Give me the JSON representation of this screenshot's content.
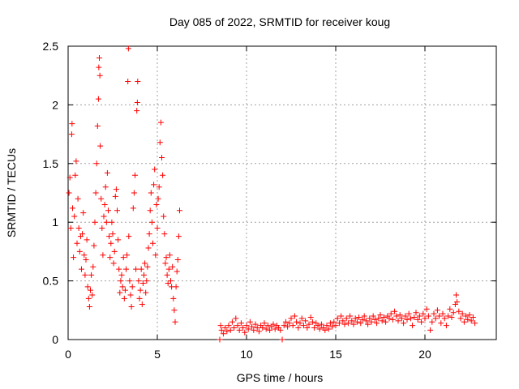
{
  "chart_data": {
    "type": "scatter",
    "title": "Day 085 of 2022, SRMTID for receiver koug",
    "xlabel": "GPS time / hours",
    "ylabel": "SRMTID / TECUs",
    "xlim": [
      0,
      24
    ],
    "ylim": [
      0,
      2.5
    ],
    "xticks": [
      0,
      5,
      10,
      15,
      20
    ],
    "yticks": [
      0,
      0.5,
      1,
      1.5,
      2,
      2.5
    ],
    "xtick_labels": [
      "0",
      "5",
      "10",
      "15",
      "20"
    ],
    "ytick_labels": [
      "0",
      "0.5",
      "1",
      "1.5",
      "2",
      "2.5"
    ],
    "grid": true,
    "marker": "+",
    "color": "#ff0000",
    "series": [
      {
        "name": "SRMTID",
        "points": [
          [
            0.05,
            1.25
          ],
          [
            0.1,
            1.38
          ],
          [
            0.15,
            0.95
          ],
          [
            0.2,
            1.75
          ],
          [
            0.22,
            1.84
          ],
          [
            0.25,
            1.12
          ],
          [
            0.3,
            0.7
          ],
          [
            0.35,
            1.05
          ],
          [
            0.4,
            1.4
          ],
          [
            0.45,
            1.52
          ],
          [
            0.5,
            0.82
          ],
          [
            0.55,
            1.2
          ],
          [
            0.6,
            0.95
          ],
          [
            0.65,
            0.75
          ],
          [
            0.7,
            0.88
          ],
          [
            0.75,
            0.6
          ],
          [
            0.8,
            0.9
          ],
          [
            0.85,
            1.08
          ],
          [
            0.9,
            0.72
          ],
          [
            0.95,
            0.55
          ],
          [
            1.0,
            0.68
          ],
          [
            1.05,
            0.85
          ],
          [
            1.1,
            0.45
          ],
          [
            1.15,
            0.35
          ],
          [
            1.2,
            0.28
          ],
          [
            1.25,
            0.42
          ],
          [
            1.3,
            0.55
          ],
          [
            1.35,
            0.38
          ],
          [
            1.4,
            0.62
          ],
          [
            1.45,
            0.8
          ],
          [
            1.5,
            1.0
          ],
          [
            1.55,
            1.25
          ],
          [
            1.6,
            1.5
          ],
          [
            1.65,
            1.82
          ],
          [
            1.7,
            2.05
          ],
          [
            1.72,
            2.32
          ],
          [
            1.75,
            2.4
          ],
          [
            1.78,
            2.25
          ],
          [
            1.8,
            1.65
          ],
          [
            1.85,
            1.2
          ],
          [
            1.9,
            0.95
          ],
          [
            1.95,
            0.72
          ],
          [
            2.0,
            1.05
          ],
          [
            2.05,
            1.15
          ],
          [
            2.1,
            1.3
          ],
          [
            2.15,
            1.0
          ],
          [
            2.2,
            1.42
          ],
          [
            2.25,
            1.1
          ],
          [
            2.3,
            0.88
          ],
          [
            2.35,
            0.7
          ],
          [
            2.4,
            0.82
          ],
          [
            2.45,
            1.0
          ],
          [
            2.5,
            0.9
          ],
          [
            2.55,
            0.65
          ],
          [
            2.6,
            0.75
          ],
          [
            2.65,
            1.22
          ],
          [
            2.7,
            1.28
          ],
          [
            2.75,
            1.1
          ],
          [
            2.8,
            0.85
          ],
          [
            2.85,
            0.6
          ],
          [
            2.9,
            0.4
          ],
          [
            2.95,
            0.5
          ],
          [
            3.0,
            0.55
          ],
          [
            3.05,
            0.45
          ],
          [
            3.1,
            0.7
          ],
          [
            3.15,
            0.35
          ],
          [
            3.2,
            0.42
          ],
          [
            3.25,
            0.6
          ],
          [
            3.3,
            0.72
          ],
          [
            3.35,
            2.2
          ],
          [
            3.38,
            2.48
          ],
          [
            3.4,
            0.88
          ],
          [
            3.45,
            0.5
          ],
          [
            3.5,
            0.38
          ],
          [
            3.55,
            0.28
          ],
          [
            3.6,
            0.45
          ],
          [
            3.65,
            1.12
          ],
          [
            3.7,
            1.25
          ],
          [
            3.75,
            1.4
          ],
          [
            3.8,
            0.6
          ],
          [
            3.85,
            1.95
          ],
          [
            3.88,
            2.02
          ],
          [
            3.9,
            2.2
          ],
          [
            3.95,
            0.5
          ],
          [
            4.0,
            0.35
          ],
          [
            4.05,
            0.42
          ],
          [
            4.1,
            0.6
          ],
          [
            4.15,
            0.3
          ],
          [
            4.2,
            0.48
          ],
          [
            4.25,
            0.55
          ],
          [
            4.3,
            0.65
          ],
          [
            4.35,
            0.4
          ],
          [
            4.4,
            0.5
          ],
          [
            4.45,
            0.62
          ],
          [
            4.5,
            0.78
          ],
          [
            4.55,
            0.9
          ],
          [
            4.6,
            1.1
          ],
          [
            4.65,
            1.25
          ],
          [
            4.7,
            1.0
          ],
          [
            4.75,
            0.82
          ],
          [
            4.8,
            1.32
          ],
          [
            4.85,
            1.45
          ],
          [
            4.9,
            0.72
          ],
          [
            4.95,
            1.15
          ],
          [
            5.0,
            0.95
          ],
          [
            5.05,
            1.2
          ],
          [
            5.1,
            1.3
          ],
          [
            5.15,
            1.68
          ],
          [
            5.2,
            1.85
          ],
          [
            5.25,
            1.55
          ],
          [
            5.3,
            1.4
          ],
          [
            5.35,
            1.05
          ],
          [
            5.4,
            0.9
          ],
          [
            5.45,
            0.65
          ],
          [
            5.5,
            0.7
          ],
          [
            5.55,
            0.55
          ],
          [
            5.6,
            0.48
          ],
          [
            5.65,
            0.6
          ],
          [
            5.7,
            0.72
          ],
          [
            5.75,
            0.5
          ],
          [
            5.8,
            0.45
          ],
          [
            5.85,
            0.62
          ],
          [
            5.9,
            0.35
          ],
          [
            5.95,
            0.25
          ],
          [
            6.0,
            0.15
          ],
          [
            6.05,
            0.45
          ],
          [
            6.1,
            0.58
          ],
          [
            6.15,
            0.68
          ],
          [
            6.2,
            0.88
          ],
          [
            6.25,
            1.1
          ],
          [
            8.5,
            0.0
          ],
          [
            8.55,
            0.12
          ],
          [
            8.6,
            0.08
          ],
          [
            8.7,
            0.05
          ],
          [
            8.8,
            0.1
          ],
          [
            8.9,
            0.07
          ],
          [
            9.0,
            0.12
          ],
          [
            9.1,
            0.08
          ],
          [
            9.2,
            0.15
          ],
          [
            9.3,
            0.1
          ],
          [
            9.4,
            0.18
          ],
          [
            9.5,
            0.12
          ],
          [
            9.6,
            0.08
          ],
          [
            9.7,
            0.14
          ],
          [
            9.8,
            0.1
          ],
          [
            9.9,
            0.06
          ],
          [
            10.0,
            0.12
          ],
          [
            10.1,
            0.09
          ],
          [
            10.2,
            0.15
          ],
          [
            10.3,
            0.11
          ],
          [
            10.4,
            0.08
          ],
          [
            10.5,
            0.13
          ],
          [
            10.6,
            0.1
          ],
          [
            10.7,
            0.07
          ],
          [
            10.8,
            0.12
          ],
          [
            10.9,
            0.1
          ],
          [
            11.0,
            0.14
          ],
          [
            11.1,
            0.09
          ],
          [
            11.2,
            0.12
          ],
          [
            11.3,
            0.08
          ],
          [
            11.4,
            0.11
          ],
          [
            11.5,
            0.13
          ],
          [
            11.6,
            0.09
          ],
          [
            11.7,
            0.12
          ],
          [
            11.8,
            0.1
          ],
          [
            11.9,
            0.08
          ],
          [
            12.0,
            0.0
          ],
          [
            12.1,
            0.12
          ],
          [
            12.2,
            0.15
          ],
          [
            12.3,
            0.11
          ],
          [
            12.4,
            0.14
          ],
          [
            12.5,
            0.18
          ],
          [
            12.6,
            0.12
          ],
          [
            12.7,
            0.2
          ],
          [
            12.8,
            0.15
          ],
          [
            12.9,
            0.1
          ],
          [
            13.0,
            0.14
          ],
          [
            13.1,
            0.18
          ],
          [
            13.2,
            0.12
          ],
          [
            13.3,
            0.16
          ],
          [
            13.4,
            0.1
          ],
          [
            13.5,
            0.13
          ],
          [
            13.6,
            0.19
          ],
          [
            13.7,
            0.15
          ],
          [
            13.8,
            0.1
          ],
          [
            13.9,
            0.14
          ],
          [
            14.0,
            0.12
          ],
          [
            14.1,
            0.09
          ],
          [
            14.2,
            0.13
          ],
          [
            14.3,
            0.1
          ],
          [
            14.4,
            0.08
          ],
          [
            14.5,
            0.12
          ],
          [
            14.6,
            0.09
          ],
          [
            14.7,
            0.14
          ],
          [
            14.8,
            0.11
          ],
          [
            14.9,
            0.15
          ],
          [
            15.0,
            0.12
          ],
          [
            15.1,
            0.18
          ],
          [
            15.2,
            0.14
          ],
          [
            15.3,
            0.2
          ],
          [
            15.4,
            0.16
          ],
          [
            15.5,
            0.13
          ],
          [
            15.6,
            0.18
          ],
          [
            15.7,
            0.14
          ],
          [
            15.8,
            0.2
          ],
          [
            15.9,
            0.16
          ],
          [
            16.0,
            0.13
          ],
          [
            16.1,
            0.18
          ],
          [
            16.2,
            0.15
          ],
          [
            16.3,
            0.19
          ],
          [
            16.4,
            0.14
          ],
          [
            16.5,
            0.17
          ],
          [
            16.6,
            0.2
          ],
          [
            16.7,
            0.16
          ],
          [
            16.8,
            0.13
          ],
          [
            16.9,
            0.18
          ],
          [
            17.0,
            0.15
          ],
          [
            17.1,
            0.2
          ],
          [
            17.2,
            0.17
          ],
          [
            17.3,
            0.14
          ],
          [
            17.4,
            0.18
          ],
          [
            17.5,
            0.21
          ],
          [
            17.6,
            0.16
          ],
          [
            17.7,
            0.19
          ],
          [
            17.8,
            0.15
          ],
          [
            17.9,
            0.2
          ],
          [
            18.0,
            0.18
          ],
          [
            18.1,
            0.22
          ],
          [
            18.2,
            0.17
          ],
          [
            18.3,
            0.24
          ],
          [
            18.4,
            0.2
          ],
          [
            18.5,
            0.16
          ],
          [
            18.6,
            0.21
          ],
          [
            18.7,
            0.18
          ],
          [
            18.8,
            0.14
          ],
          [
            18.9,
            0.2
          ],
          [
            19.0,
            0.17
          ],
          [
            19.1,
            0.22
          ],
          [
            19.2,
            0.18
          ],
          [
            19.3,
            0.12
          ],
          [
            19.4,
            0.19
          ],
          [
            19.5,
            0.23
          ],
          [
            19.6,
            0.17
          ],
          [
            19.7,
            0.2
          ],
          [
            19.8,
            0.15
          ],
          [
            19.9,
            0.22
          ],
          [
            20.0,
            0.18
          ],
          [
            20.1,
            0.26
          ],
          [
            20.2,
            0.2
          ],
          [
            20.3,
            0.08
          ],
          [
            20.4,
            0.15
          ],
          [
            20.5,
            0.22
          ],
          [
            20.6,
            0.18
          ],
          [
            20.7,
            0.25
          ],
          [
            20.8,
            0.2
          ],
          [
            20.9,
            0.14
          ],
          [
            21.0,
            0.22
          ],
          [
            21.1,
            0.18
          ],
          [
            21.2,
            0.12
          ],
          [
            21.3,
            0.2
          ],
          [
            21.4,
            0.26
          ],
          [
            21.5,
            0.19
          ],
          [
            21.6,
            0.23
          ],
          [
            21.7,
            0.3
          ],
          [
            21.75,
            0.38
          ],
          [
            21.8,
            0.32
          ],
          [
            21.9,
            0.24
          ],
          [
            22.0,
            0.18
          ],
          [
            22.1,
            0.22
          ],
          [
            22.2,
            0.15
          ],
          [
            22.3,
            0.2
          ],
          [
            22.4,
            0.17
          ],
          [
            22.5,
            0.21
          ],
          [
            22.6,
            0.16
          ],
          [
            22.7,
            0.19
          ],
          [
            22.8,
            0.14
          ]
        ]
      }
    ]
  }
}
